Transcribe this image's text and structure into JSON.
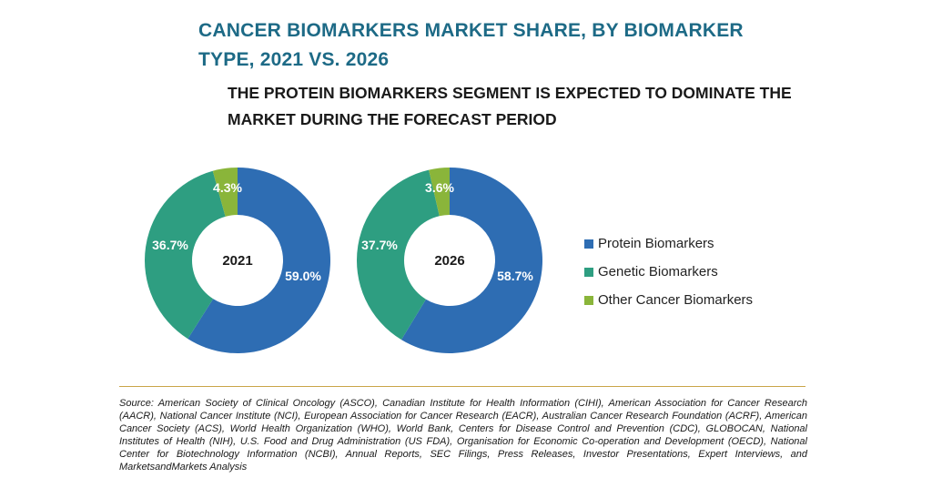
{
  "title": "CANCER BIOMARKERS MARKET SHARE, BY BIOMARKER TYPE, 2021 VS. 2026",
  "subtitle": "THE PROTEIN BIOMARKERS SEGMENT IS EXPECTED TO DOMINATE THE MARKET DURING THE FORECAST PERIOD",
  "colors": {
    "protein": "#2e6db3",
    "genetic": "#2e9e81",
    "other": "#8ab53a"
  },
  "legend": [
    {
      "label": "Protein Biomarkers",
      "color": "#2e6db3"
    },
    {
      "label": "Genetic Biomarkers",
      "color": "#2e9e81"
    },
    {
      "label": "Other Cancer Biomarkers",
      "color": "#8ab53a"
    }
  ],
  "chart_data": [
    {
      "type": "pie",
      "center_label": "2021",
      "labels": [
        "Protein Biomarkers",
        "Genetic Biomarkers",
        "Other Cancer Biomarkers"
      ],
      "values": [
        59.0,
        36.7,
        4.3
      ],
      "value_labels": [
        "59.0%",
        "36.7%",
        "4.3%"
      ],
      "colors": [
        "#2e6db3",
        "#2e9e81",
        "#8ab53a"
      ]
    },
    {
      "type": "pie",
      "center_label": "2026",
      "labels": [
        "Protein Biomarkers",
        "Genetic Biomarkers",
        "Other Cancer Biomarkers"
      ],
      "values": [
        58.7,
        37.7,
        3.6
      ],
      "value_labels": [
        "58.7%",
        "37.7%",
        "3.6%"
      ],
      "colors": [
        "#2e6db3",
        "#2e9e81",
        "#8ab53a"
      ]
    }
  ],
  "source": "Source: American Society of Clinical Oncology (ASCO), Canadian Institute for Health Information (CIHI), American Association for Cancer Research (AACR), National Cancer Institute (NCI), European Association for Cancer Research (EACR), Australian Cancer Research Foundation (ACRF), American Cancer Society (ACS), World Health Organization (WHO), World Bank, Centers for Disease Control and Prevention (CDC), GLOBOCAN, National Institutes of Health (NIH), U.S. Food and Drug Administration (US FDA), Organisation for Economic Co-operation and Development (OECD), National Center for Biotechnology Information (NCBI), Annual Reports, SEC Filings, Press Releases, Investor Presentations, Expert Interviews, and MarketsandMarkets Analysis"
}
